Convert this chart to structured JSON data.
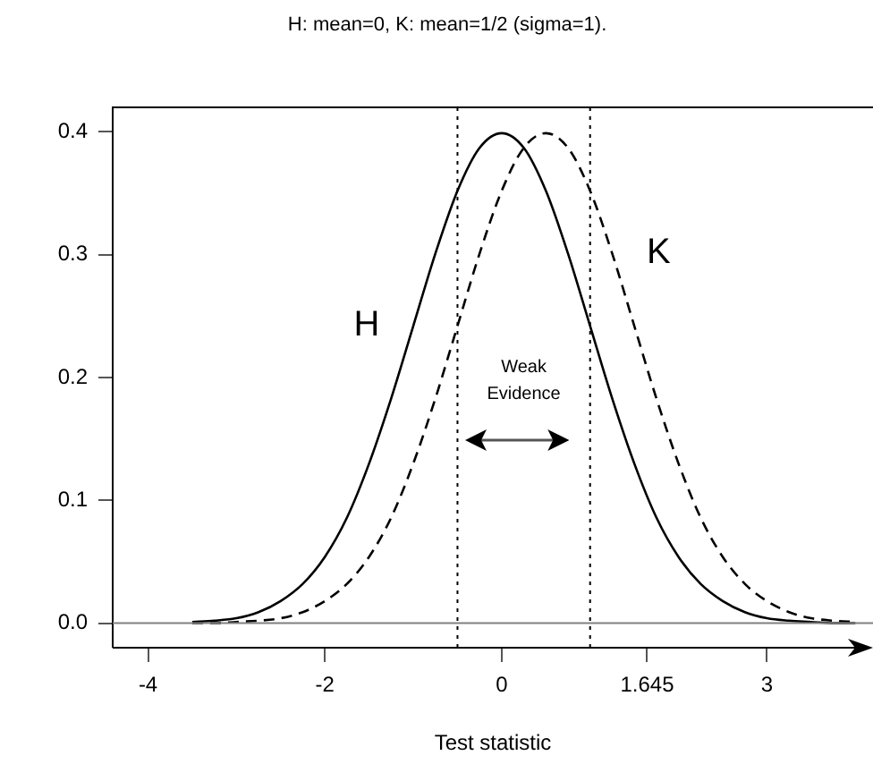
{
  "chart_data": {
    "type": "line",
    "title": "H: mean=0, K: mean=1/2 (sigma=1).",
    "xlabel": "Test statistic",
    "x": [
      -3.5,
      -3.25,
      -3,
      -2.75,
      -2.5,
      -2.25,
      -2,
      -1.75,
      -1.5,
      -1.25,
      -1,
      -0.75,
      -0.5,
      -0.25,
      0,
      0.25,
      0.5,
      0.75,
      1,
      1.25,
      1.5,
      1.75,
      2,
      2.25,
      2.5,
      2.75,
      3,
      3.25,
      3.5,
      3.75,
      4
    ],
    "series": [
      {
        "name": "H",
        "color": "#000000",
        "line_style": "solid",
        "values": [
          0.001,
          0.002,
          0.004,
          0.009,
          0.018,
          0.032,
          0.054,
          0.086,
          0.13,
          0.183,
          0.242,
          0.301,
          0.352,
          0.387,
          0.399,
          0.387,
          0.352,
          0.301,
          0.242,
          0.183,
          0.13,
          0.086,
          0.054,
          0.032,
          0.018,
          0.009,
          0.004,
          0.002,
          0.001,
          0.0,
          0.0
        ]
      },
      {
        "name": "K",
        "color": "#000000",
        "line_style": "dashed",
        "values": [
          0.0,
          0.0,
          0.001,
          0.002,
          0.004,
          0.009,
          0.018,
          0.032,
          0.054,
          0.086,
          0.13,
          0.183,
          0.242,
          0.301,
          0.352,
          0.387,
          0.399,
          0.387,
          0.352,
          0.301,
          0.242,
          0.183,
          0.13,
          0.086,
          0.054,
          0.032,
          0.018,
          0.009,
          0.004,
          0.002,
          0.001
        ]
      }
    ],
    "annotations": [
      "Weak Evidence"
    ],
    "ref_lines": [
      {
        "axis": "x",
        "value": -0.5,
        "color": "#000000",
        "line_style": "dotted"
      },
      {
        "axis": "x",
        "value": 1.0,
        "color": "#000000",
        "line_style": "dotted"
      },
      {
        "axis": "y",
        "value": 0,
        "color": "#808080",
        "line_style": "solid"
      }
    ],
    "xlim": [
      -4.4,
      4.2
    ],
    "xticks": [
      -4,
      -2,
      0,
      1.645,
      3
    ],
    "ylim": [
      -0.02,
      0.42
    ],
    "yticks": [
      {
        "value": 0,
        "label": "0.0"
      },
      0.1,
      0.2,
      0.3,
      0.4
    ],
    "grid": false,
    "legend": false,
    "marker": "none"
  }
}
